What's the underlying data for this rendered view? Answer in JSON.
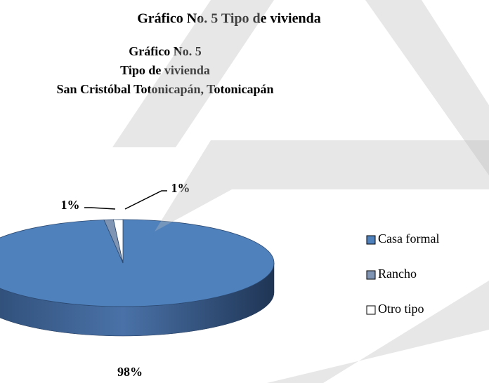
{
  "heading": "Gráfico No. 5 Tipo de vivienda",
  "chart_data": {
    "type": "pie",
    "title": [
      "Gráfico No.  5",
      "Tipo de vivienda",
      "San Cristóbal Totonicapán, Totonicapán"
    ],
    "categories": [
      "Casa formal",
      "Rancho",
      "Otro tipo"
    ],
    "values": [
      98,
      1,
      1
    ],
    "value_labels": [
      "98%",
      "1%",
      "1%"
    ],
    "colors": [
      "#4f81bd",
      "#7f95b3",
      "#ffffff"
    ],
    "legend": "right"
  }
}
